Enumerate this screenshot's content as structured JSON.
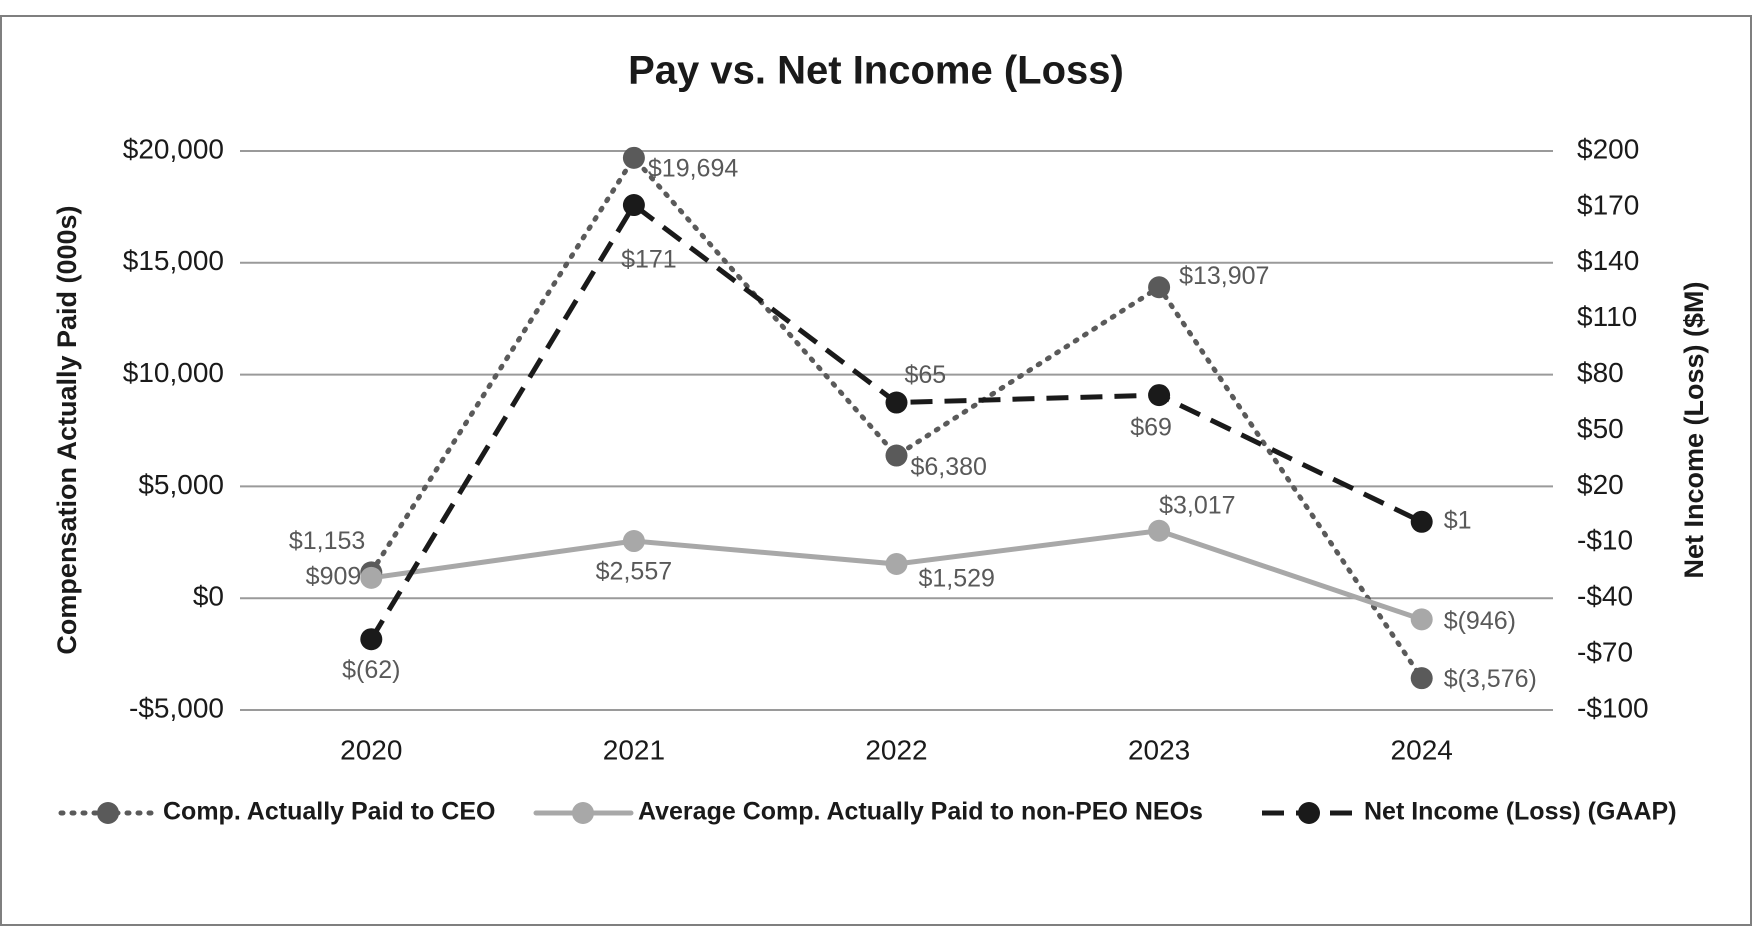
{
  "chart_data": {
    "type": "line",
    "title": "Pay vs. Net Income (Loss)",
    "y_label": "Compensation Actually Paid (000s)",
    "y2_label": "Net Income (Loss) ($M)",
    "categories": [
      "2020",
      "2021",
      "2022",
      "2023",
      "2024"
    ],
    "ylim": [
      -5000,
      20000
    ],
    "yticks": [
      {
        "value": -5000,
        "label": "-$5,000"
      },
      {
        "value": 0,
        "label": "$0"
      },
      {
        "value": 5000,
        "label": "$5,000"
      },
      {
        "value": 10000,
        "label": "$10,000"
      },
      {
        "value": 15000,
        "label": "$15,000"
      },
      {
        "value": 20000,
        "label": "$20,000"
      }
    ],
    "y2lim": [
      -100,
      200
    ],
    "y2ticks": [
      {
        "value": -100,
        "label": "-$100"
      },
      {
        "value": -70,
        "label": "-$70"
      },
      {
        "value": -40,
        "label": "-$40"
      },
      {
        "value": -10,
        "label": "-$10"
      },
      {
        "value": 20,
        "label": "$20"
      },
      {
        "value": 50,
        "label": "$50"
      },
      {
        "value": 80,
        "label": "$80"
      },
      {
        "value": 110,
        "label": "$110"
      },
      {
        "value": 140,
        "label": "$140"
      },
      {
        "value": 170,
        "label": "$170"
      },
      {
        "value": 200,
        "label": "$200"
      }
    ],
    "grid": true,
    "legend": "bottom",
    "series": [
      {
        "name": "Comp. Actually Paid to CEO",
        "color": "#5a5a5a",
        "line_style": "dotted",
        "values": [
          1153,
          19694,
          6380,
          13907,
          -3576
        ],
        "value_labels": [
          "$1,153",
          "$19,694",
          "$6,380",
          "$13,907",
          "$(3,576)"
        ]
      },
      {
        "name": "Average Comp. Actually Paid to non-PEO NEOs",
        "color": "#a8a8a8",
        "line_style": "solid",
        "values": [
          909,
          2557,
          1529,
          3017,
          -946
        ],
        "value_labels": [
          "$909",
          "$2,557",
          "$1,529",
          "$3,017",
          "$(946)"
        ]
      },
      {
        "name": "Net Income (Loss) (GAAP)",
        "color": "#1a1a1a",
        "line_style": "dashed",
        "axis": "y2",
        "values": [
          -62,
          171,
          65,
          69,
          1
        ],
        "value_labels": [
          "$(62)",
          "$171",
          "$65",
          "$69",
          "$1"
        ]
      }
    ]
  }
}
